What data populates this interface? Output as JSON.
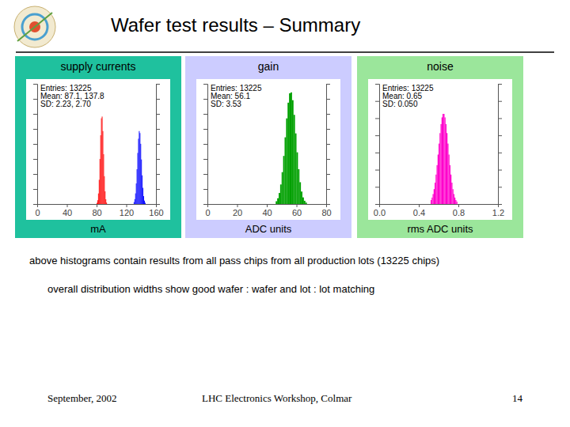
{
  "slide": {
    "title": "Wafer test results – Summary",
    "notes": [
      "above histograms contain results from all pass chips from all production lots (13225 chips)",
      "overall distribution widths show good wafer : wafer and lot : lot matching"
    ],
    "footer": {
      "date": "September, 2002",
      "event": "LHC Electronics Workshop, Colmar",
      "page": 14
    }
  },
  "chart_data": [
    {
      "type": "histogram",
      "title": "supply currents",
      "x_label": "mA",
      "xlim": [
        0,
        160
      ],
      "xticks": [
        0,
        40,
        80,
        120,
        160
      ],
      "ylim": [
        0,
        3200
      ],
      "yticks": [
        0,
        400,
        800,
        1200,
        1600,
        2000,
        2400,
        2800,
        3200
      ],
      "tick_labels": "x",
      "stats": [
        "Entries: 13225",
        "Mean: 87.1, 137.8",
        "SD: 2.23, 2.70"
      ],
      "series": [
        {
          "color": "#ff0000",
          "bins": [
            80,
            81,
            82,
            83,
            84,
            85,
            86,
            87,
            88,
            89,
            90,
            91,
            92,
            93,
            94
          ],
          "values": [
            30,
            101,
            281,
            645,
            1199,
            1830,
            2283,
            2328,
            1942,
            1326,
            740,
            338,
            126,
            38
          ]
        },
        {
          "color": "#0000ff",
          "bins": [
            130,
            131,
            132,
            133,
            134,
            135,
            136,
            137,
            138,
            139,
            140,
            141,
            142,
            143,
            144,
            145,
            146
          ],
          "values": [
            51,
            129,
            283,
            549,
            926,
            1360,
            1739,
            1942,
            1889,
            1603,
            1186,
            763,
            430,
            210,
            90,
            34
          ]
        }
      ]
    },
    {
      "type": "histogram",
      "title": "gain",
      "x_label": "ADC units",
      "xlim": [
        0,
        80
      ],
      "xticks": [
        0,
        20,
        40,
        60,
        80
      ],
      "ylim": [
        0,
        1600
      ],
      "yticks": [
        0,
        200,
        400,
        600,
        800,
        1000,
        1200,
        1400,
        1600
      ],
      "tick_labels": "x",
      "stats": [
        "Entries: 13225",
        "Mean: 56.1",
        "SD: 3.53"
      ],
      "series": [
        {
          "color": "#00a000",
          "bins": [
            46,
            47,
            48,
            49,
            50,
            51,
            52,
            53,
            54,
            55,
            56,
            57,
            58,
            59,
            60,
            61,
            62,
            63,
            64,
            65,
            66,
            67
          ],
          "values": [
            37,
            77,
            147,
            260,
            424,
            640,
            888,
            1140,
            1349,
            1474,
            1486,
            1382,
            1187,
            940,
            688,
            464,
            290,
            166,
            88,
            43,
            19
          ]
        }
      ]
    },
    {
      "type": "histogram",
      "title": "noise",
      "x_label": "rms ADC units",
      "xlim": [
        0,
        1.2
      ],
      "xticks": [
        {
          "value": 0,
          "label": "0.0"
        },
        0.4,
        0.8,
        1.2
      ],
      "ylim": [
        0,
        1400
      ],
      "yticks": [
        0,
        200,
        400,
        600,
        800,
        1000,
        1200,
        1400
      ],
      "tick_labels": "x",
      "stats": [
        "Entries: 13225",
        "Mean: 0.65",
        "SD: 0.050"
      ],
      "series": [
        {
          "color": "#ff00cc",
          "bins": [
            0.52,
            0.53,
            0.54,
            0.55,
            0.56,
            0.57,
            0.58,
            0.59,
            0.6,
            0.61,
            0.62,
            0.63,
            0.64,
            0.65,
            0.66,
            0.67,
            0.68,
            0.69,
            0.7,
            0.71,
            0.72,
            0.73,
            0.74,
            0.75,
            0.76,
            0.77,
            0.78,
            0.79
          ],
          "values": [
            46,
            75,
            116,
            173,
            249,
            343,
            453,
            576,
            704,
            826,
            931,
            1009,
            1050,
            1050,
            1009,
            931,
            826,
            704,
            576,
            453,
            343,
            249,
            173,
            116,
            75,
            46,
            28
          ]
        }
      ]
    }
  ]
}
